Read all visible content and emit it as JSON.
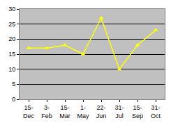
{
  "chart_data": {
    "type": "line",
    "categories": [
      "15-Dec",
      "3-Feb",
      "15-Mar",
      "1-May",
      "22-Jun",
      "31-Jul",
      "15-Sep",
      "31-Oct"
    ],
    "values": [
      17,
      17,
      18,
      15,
      27,
      10,
      18,
      23
    ],
    "color": "#ffff00",
    "marker": "triangle",
    "ylim": [
      0,
      30
    ],
    "yticks": [
      0,
      5,
      10,
      15,
      20,
      25,
      30
    ],
    "grid": true
  }
}
